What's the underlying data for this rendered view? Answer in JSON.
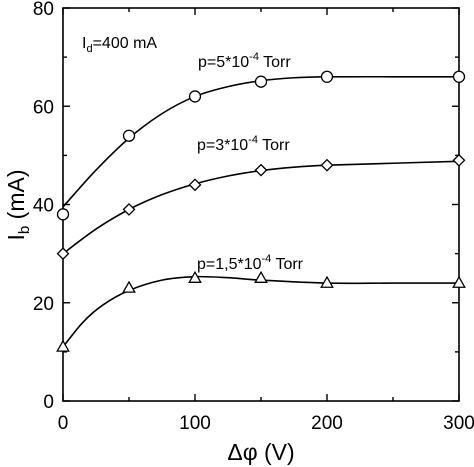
{
  "chart_data": {
    "type": "line",
    "title": "",
    "xlabel": "Δφ (V)",
    "ylabel": {
      "main": "I",
      "sub": "b",
      "rest": " (mA)"
    },
    "xlim": [
      0,
      300
    ],
    "ylim": [
      0,
      80
    ],
    "xticks": [
      0,
      100,
      200,
      300
    ],
    "yticks": [
      0,
      20,
      40,
      60,
      80
    ],
    "grid": false,
    "legend": "none",
    "annotations": [
      {
        "id": "id",
        "main": "I",
        "sub": "d",
        "rest": "=400 mA"
      }
    ],
    "series": [
      {
        "name": {
          "pre": "p=5*10",
          "sup": "-4",
          "post": " Torr"
        },
        "marker": "circle",
        "x": [
          0,
          50,
          100,
          150,
          200,
          300
        ],
        "y": [
          38,
          54,
          62,
          65,
          66,
          66
        ],
        "curve": [
          [
            0,
            39.5
          ],
          [
            25,
            47
          ],
          [
            50,
            53.5
          ],
          [
            75,
            58.5
          ],
          [
            100,
            62
          ],
          [
            125,
            64
          ],
          [
            150,
            65.2
          ],
          [
            175,
            65.8
          ],
          [
            200,
            66
          ],
          [
            250,
            66
          ],
          [
            300,
            66
          ]
        ]
      },
      {
        "name": {
          "pre": "p=3*10",
          "sup": "-4",
          "post": " Torr"
        },
        "marker": "diamond",
        "x": [
          0,
          50,
          100,
          150,
          200,
          300
        ],
        "y": [
          30,
          39,
          44,
          47,
          48,
          49
        ],
        "curve": [
          [
            0,
            30
          ],
          [
            25,
            35
          ],
          [
            50,
            39
          ],
          [
            75,
            42
          ],
          [
            100,
            44.2
          ],
          [
            125,
            45.8
          ],
          [
            150,
            46.9
          ],
          [
            175,
            47.6
          ],
          [
            200,
            48
          ],
          [
            250,
            48.4
          ],
          [
            300,
            48.8
          ]
        ]
      },
      {
        "name": {
          "pre": "p=1,5*10",
          "sup": "-4",
          "post": " Torr"
        },
        "marker": "triangle",
        "x": [
          0,
          50,
          100,
          150,
          200,
          300
        ],
        "y": [
          11,
          23,
          25,
          25,
          24,
          24
        ],
        "curve": [
          [
            0,
            11
          ],
          [
            15,
            16
          ],
          [
            30,
            19.5
          ],
          [
            50,
            22.5
          ],
          [
            75,
            24.6
          ],
          [
            100,
            25.3
          ],
          [
            125,
            25.1
          ],
          [
            150,
            24.6
          ],
          [
            200,
            24
          ],
          [
            250,
            24
          ],
          [
            300,
            24
          ]
        ]
      }
    ]
  }
}
